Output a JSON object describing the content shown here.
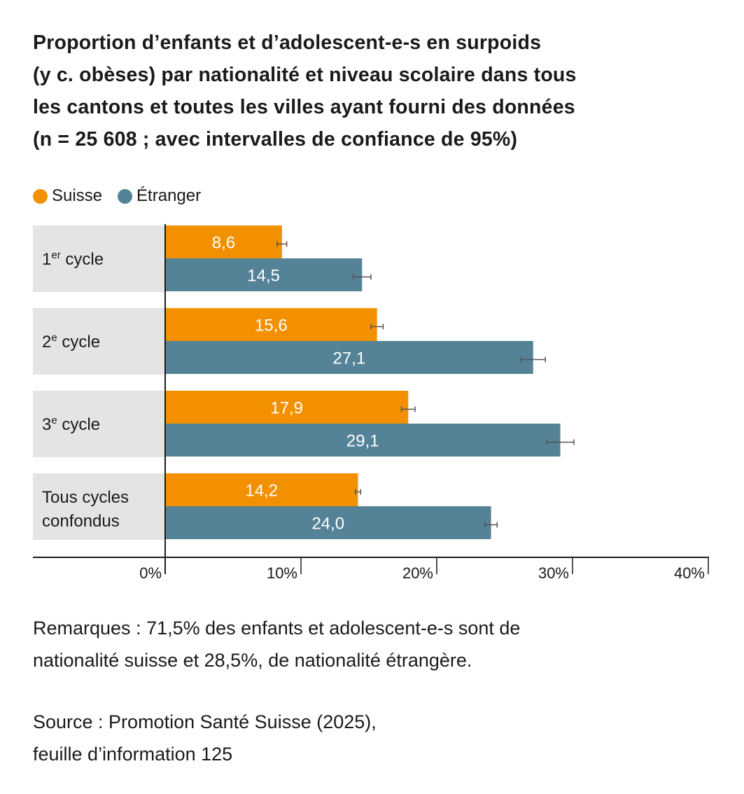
{
  "title_lines": [
    "Proportion d’enfants et d’adolescent-e-s en surpoids",
    "(y c. obèses) par nationalité et niveau scolaire dans tous",
    "les cantons et toutes les villes ayant fourni des données",
    "(n = 25 608 ; avec intervalles de confiance de 95%)"
  ],
  "legend": [
    {
      "label": "Suisse",
      "color": "#F39000"
    },
    {
      "label": "Étranger",
      "color": "#548296"
    }
  ],
  "chart_data": {
    "type": "bar",
    "orientation": "horizontal",
    "title": "Proportion d’enfants et d’adolescent-e-s en surpoids (y c. obèses) par nationalité et niveau scolaire dans tous les cantons et toutes les villes ayant fourni des données (n = 25 608 ; avec intervalles de confiance de 95%)",
    "categories": [
      {
        "main": "1",
        "sup": "er",
        "rest": " cycle"
      },
      {
        "main": "2",
        "sup": "e",
        "rest": " cycle"
      },
      {
        "main": "3",
        "sup": "e",
        "rest": " cycle"
      },
      {
        "main": "Tous cycles",
        "sup": "",
        "rest": "",
        "line2": "confondus"
      }
    ],
    "category_labels": [
      "1er cycle",
      "2e cycle",
      "3e cycle",
      "Tous cycles confondus"
    ],
    "series": [
      {
        "name": "Suisse",
        "color": "#F39000",
        "values": [
          8.6,
          15.6,
          17.9,
          14.2
        ],
        "labels": [
          "8,6",
          "15,6",
          "17,9",
          "14,2"
        ],
        "ci_halfwidth": [
          0.35,
          0.45,
          0.5,
          0.2
        ]
      },
      {
        "name": "Étranger",
        "color": "#548296",
        "values": [
          14.5,
          27.1,
          29.1,
          24.0
        ],
        "labels": [
          "14,5",
          "27,1",
          "29,1",
          "24,0"
        ],
        "ci_halfwidth": [
          0.65,
          0.9,
          1.0,
          0.45
        ]
      }
    ],
    "xlim": [
      0,
      40
    ],
    "xticks": [
      0,
      10,
      20,
      30,
      40
    ],
    "xtick_labels": [
      "0%",
      "10%",
      "20%",
      "30%",
      "40%"
    ],
    "xlabel": "",
    "ylabel": "",
    "grid": false,
    "error_bars": "95% confidence intervals",
    "legend_position": "top-left",
    "category_band_color": "#E3E4E3"
  },
  "notes": [
    "Remarques : 71,5% des enfants et adolescent-e-s sont de",
    "nationalité suisse et 28,5%, de nationalité étrangère."
  ],
  "source": [
    "Source : Promotion Santé Suisse (2025),",
    "feuille d’information 125"
  ]
}
